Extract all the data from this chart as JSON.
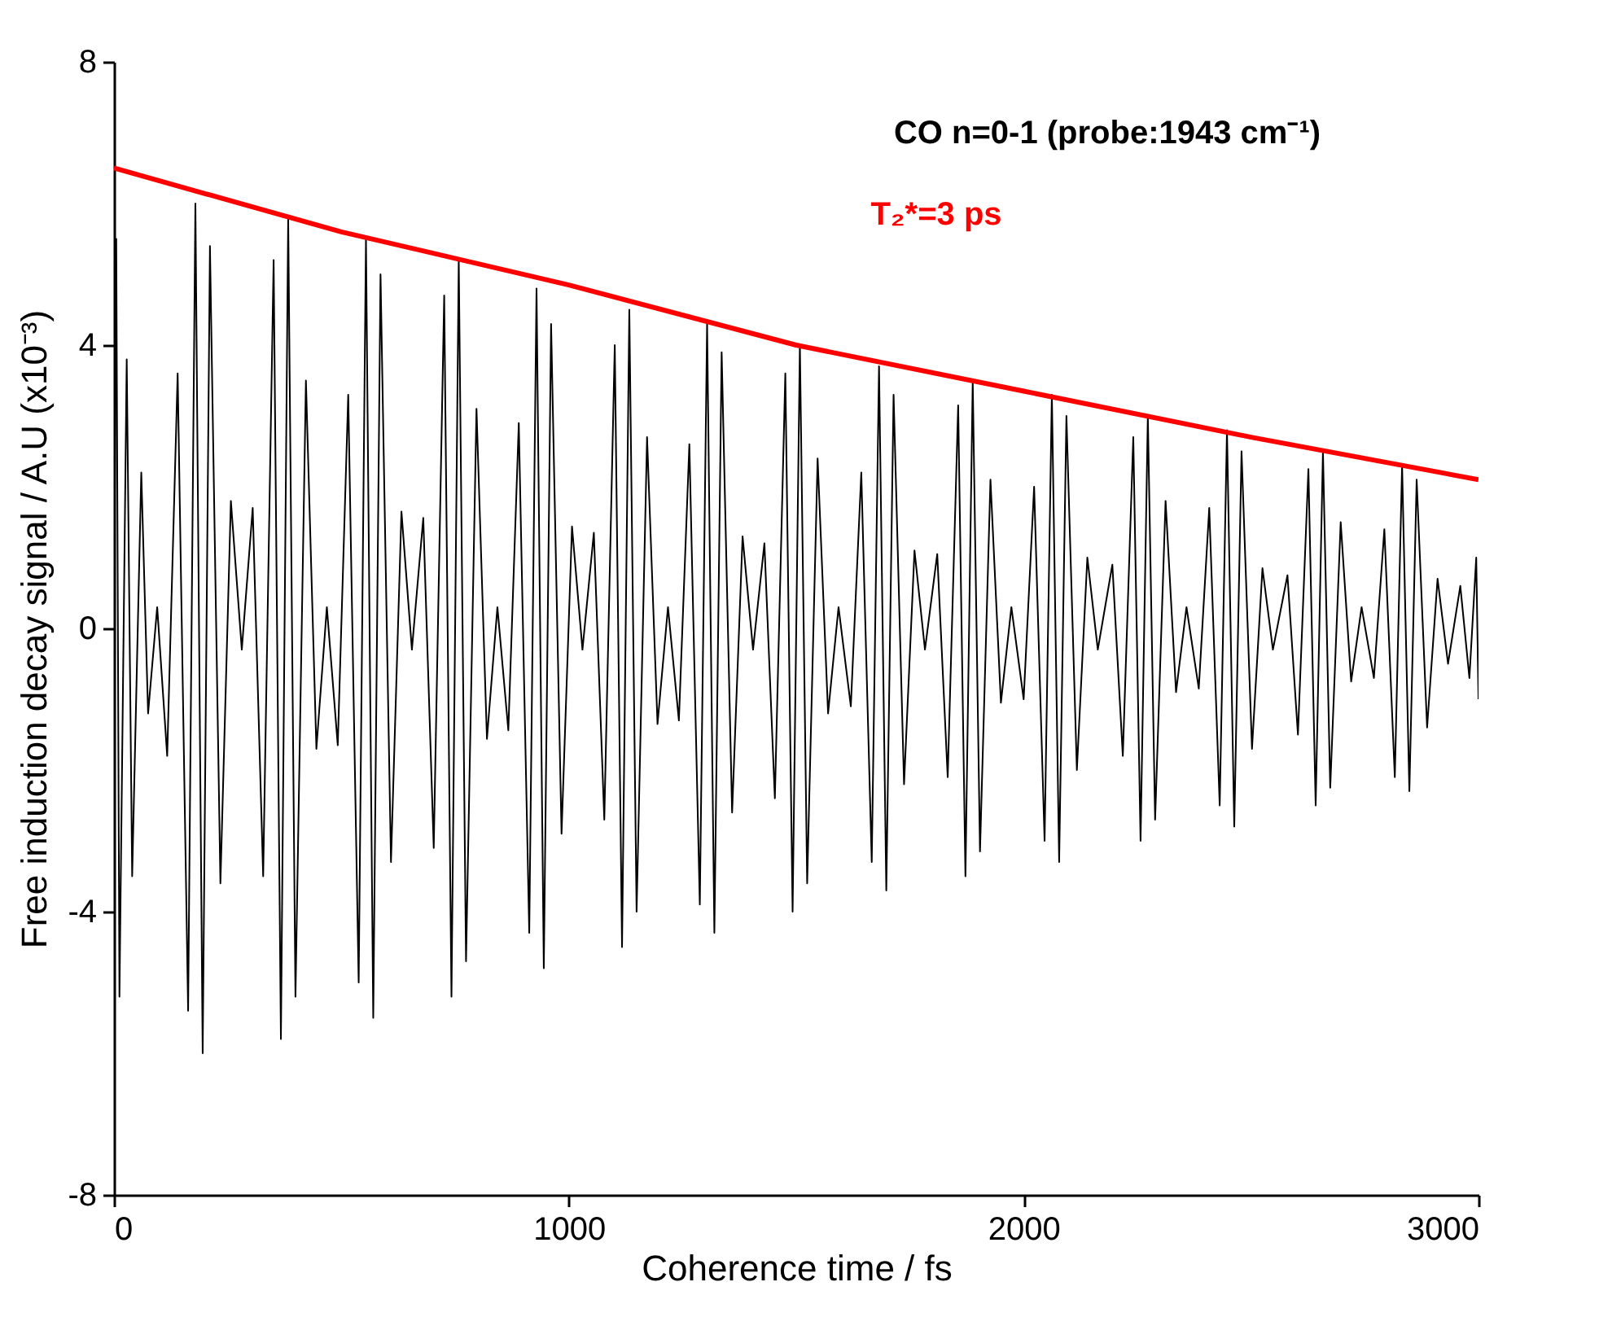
{
  "chart_data": {
    "type": "line",
    "xlabel": "Coherence time / fs",
    "ylabel": "Free induction decay signal / A.U (x10⁻³)",
    "xlim": [
      0,
      3000
    ],
    "xticks": [
      0,
      1000,
      2000,
      3000
    ],
    "ylim": [
      -8,
      8
    ],
    "yticks": [
      -8,
      -4,
      0,
      4,
      8
    ],
    "grid": false,
    "annotations": [
      "CO n=0-1 (probe:1943 cm⁻¹)"
    ],
    "series": [
      {
        "color": "#000000",
        "x": [
          0,
          5,
          12,
          28,
          40,
          60,
          75,
          95,
          117,
          140,
          163,
          179,
          195,
          211,
          234,
          257,
          281,
          305,
          328,
          351,
          367,
          383,
          399,
          422,
          445,
          468,
          492,
          515,
          538,
          554,
          570,
          586,
          609,
          632,
          655,
          680,
          703,
          726,
          742,
          758,
          774,
          797,
          820,
          843,
          867,
          890,
          913,
          929,
          945,
          961,
          984,
          1007,
          1030,
          1055,
          1078,
          1101,
          1117,
          1133,
          1149,
          1172,
          1195,
          1218,
          1242,
          1265,
          1288,
          1304,
          1320,
          1336,
          1359,
          1382,
          1405,
          1430,
          1453,
          1476,
          1492,
          1508,
          1524,
          1547,
          1570,
          1593,
          1620,
          1643,
          1666,
          1682,
          1698,
          1714,
          1737,
          1760,
          1783,
          1810,
          1833,
          1856,
          1872,
          1888,
          1904,
          1927,
          1950,
          1973,
          2000,
          2023,
          2046,
          2062,
          2078,
          2094,
          2117,
          2140,
          2163,
          2195,
          2218,
          2241,
          2257,
          2273,
          2289,
          2312,
          2335,
          2358,
          2385,
          2408,
          2431,
          2447,
          2463,
          2479,
          2502,
          2525,
          2548,
          2580,
          2603,
          2626,
          2642,
          2658,
          2674,
          2697,
          2720,
          2743,
          2770,
          2793,
          2816,
          2832,
          2848,
          2864,
          2887,
          2910,
          2933,
          2960,
          2980,
          2995,
          3000
        ],
        "values": [
          0,
          5.5,
          -5.2,
          3.8,
          -3.5,
          2.2,
          -1.2,
          0.3,
          -1.8,
          3.6,
          -5.4,
          6.0,
          -6.0,
          5.4,
          -3.6,
          1.8,
          -0.3,
          1.7,
          -3.5,
          5.2,
          -5.8,
          5.8,
          -5.2,
          3.5,
          -1.7,
          0.3,
          -1.65,
          3.3,
          -5.0,
          5.5,
          -5.5,
          5.0,
          -3.3,
          1.65,
          -0.3,
          1.56,
          -3.1,
          4.7,
          -5.2,
          5.2,
          -4.7,
          3.1,
          -1.56,
          0.3,
          -1.44,
          2.9,
          -4.3,
          4.8,
          -4.8,
          4.3,
          -2.9,
          1.44,
          -0.3,
          1.35,
          -2.7,
          4.0,
          -4.5,
          4.5,
          -4.0,
          2.7,
          -1.35,
          0.3,
          -1.3,
          2.6,
          -3.9,
          4.3,
          -4.3,
          3.9,
          -2.6,
          1.3,
          -0.3,
          1.2,
          -2.4,
          3.6,
          -4.0,
          4.0,
          -3.6,
          2.4,
          -1.2,
          0.3,
          -1.1,
          2.2,
          -3.3,
          3.7,
          -3.7,
          3.3,
          -2.2,
          1.1,
          -0.3,
          1.05,
          -2.1,
          3.15,
          -3.5,
          3.5,
          -3.15,
          2.1,
          -1.05,
          0.3,
          -1.0,
          2.0,
          -3.0,
          3.3,
          -3.3,
          3.0,
          -2.0,
          1.0,
          -0.3,
          0.9,
          -1.8,
          2.7,
          -3.0,
          3.0,
          -2.7,
          1.8,
          -0.9,
          0.3,
          -0.85,
          1.7,
          -2.5,
          2.8,
          -2.8,
          2.5,
          -1.7,
          0.85,
          -0.3,
          0.75,
          -1.5,
          2.25,
          -2.5,
          2.5,
          -2.25,
          1.5,
          -0.75,
          0.3,
          -0.7,
          1.4,
          -2.1,
          2.3,
          -2.3,
          2.1,
          -1.4,
          0.7,
          -0.5,
          0.6,
          -0.7,
          1.0,
          -1.0
        ]
      },
      {
        "name": "T₂*=3 ps",
        "color": "#ff0000",
        "x": [
          0,
          500,
          1000,
          1500,
          2000,
          2500,
          3000
        ],
        "values": [
          6.5,
          5.6,
          4.85,
          4.0,
          3.35,
          2.7,
          2.1
        ]
      }
    ]
  }
}
